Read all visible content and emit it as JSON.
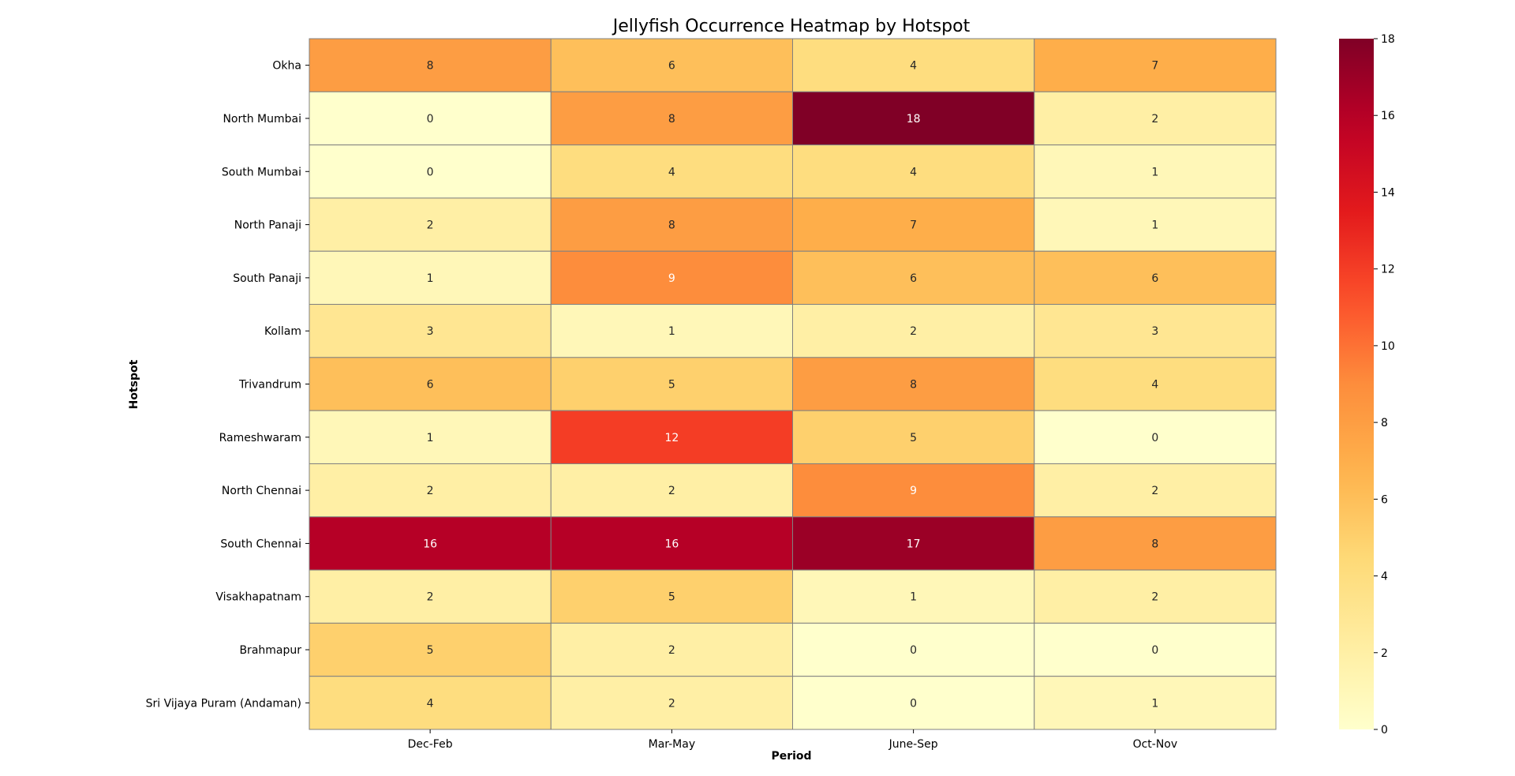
{
  "chart_data": {
    "type": "heatmap",
    "title": "Jellyfish Occurrence Heatmap by Hotspot",
    "xlabel": "Period",
    "ylabel": "Hotspot",
    "x_categories": [
      "Dec-Feb",
      "Mar-May",
      "June-Sep",
      "Oct-Nov"
    ],
    "y_categories": [
      "Okha",
      "North Mumbai",
      "South Mumbai",
      "North Panaji",
      "South Panaji",
      "Kollam",
      "Trivandrum",
      "Rameshwaram",
      "North Chennai",
      "South Chennai",
      "Visakhapatnam",
      "Brahmapur",
      "Sri Vijaya Puram (Andaman)"
    ],
    "values": [
      [
        8,
        6,
        4,
        7
      ],
      [
        0,
        8,
        18,
        2
      ],
      [
        0,
        4,
        4,
        1
      ],
      [
        2,
        8,
        7,
        1
      ],
      [
        1,
        9,
        6,
        6
      ],
      [
        3,
        1,
        2,
        3
      ],
      [
        6,
        5,
        8,
        4
      ],
      [
        1,
        12,
        5,
        0
      ],
      [
        2,
        2,
        9,
        2
      ],
      [
        16,
        16,
        17,
        8
      ],
      [
        2,
        5,
        1,
        2
      ],
      [
        5,
        2,
        0,
        0
      ],
      [
        4,
        2,
        0,
        1
      ]
    ],
    "colorbar": {
      "min": 0,
      "max": 18,
      "ticks": [
        0,
        2,
        4,
        6,
        8,
        10,
        12,
        14,
        16,
        18
      ],
      "colormap": "YlOrRd"
    },
    "annotated": true,
    "cell_border_color": "#808080"
  }
}
